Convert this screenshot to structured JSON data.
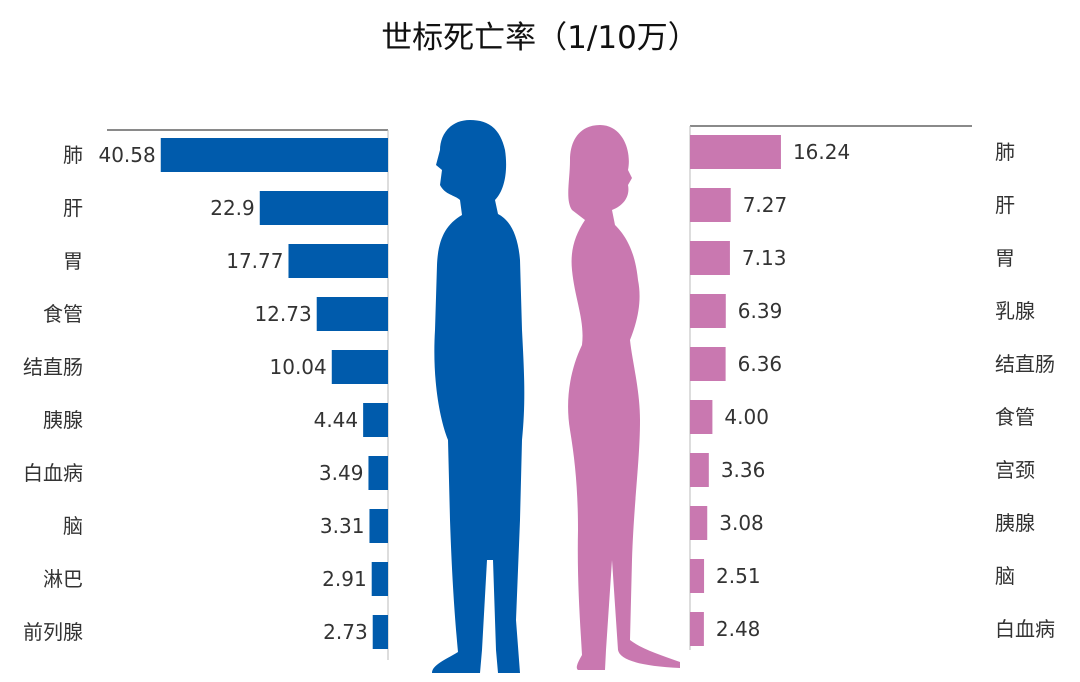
{
  "chart_data": [
    {
      "type": "bar",
      "orientation": "horizontal",
      "direction": "leftward",
      "title": "世标死亡率（1/10万）",
      "categories": [
        "肺",
        "肝",
        "胃",
        "食管",
        "结直肠",
        "胰腺",
        "白血病",
        "脑",
        "淋巴",
        "前列腺"
      ],
      "values": [
        40.58,
        22.9,
        17.77,
        12.73,
        10.04,
        4.44,
        3.49,
        3.31,
        2.91,
        2.73
      ],
      "value_labels": [
        "40.58",
        "22.9",
        "17.77",
        "12.73",
        "10.04",
        "4.44",
        "3.49",
        "3.31",
        "2.91",
        "2.73"
      ],
      "color": "#005BAC",
      "icon": "male-silhouette-icon"
    },
    {
      "type": "bar",
      "orientation": "horizontal",
      "direction": "rightward",
      "categories": [
        "肺",
        "肝",
        "胃",
        "乳腺",
        "结直肠",
        "食管",
        "宫颈",
        "胰腺",
        "脑",
        "白血病"
      ],
      "values": [
        16.24,
        7.27,
        7.13,
        6.39,
        6.36,
        4.0,
        3.36,
        3.08,
        2.51,
        2.48
      ],
      "value_labels": [
        "16.24",
        "7.27",
        "7.13",
        "6.39",
        "6.36",
        "4.00",
        "3.36",
        "3.08",
        "2.51",
        "2.48"
      ],
      "color": "#C978B0",
      "icon": "female-silhouette-icon"
    }
  ],
  "title": "世标死亡率（1/10万）"
}
